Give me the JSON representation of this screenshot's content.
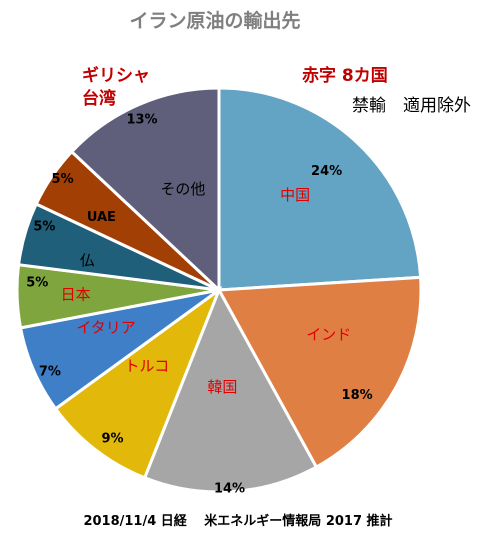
{
  "chart_data": {
    "type": "pie",
    "title": "イラン原油の輸出先",
    "series": [
      {
        "name": "中国",
        "value": 24,
        "label": "24%",
        "color": "#63a3c4"
      },
      {
        "name": "インド",
        "value": 18,
        "label": "18%",
        "color": "#e07f43"
      },
      {
        "name": "韓国",
        "value": 14,
        "label": "14%",
        "color": "#a6a6a6"
      },
      {
        "name": "トルコ",
        "value": 9,
        "label": "9%",
        "color": "#e2b80a"
      },
      {
        "name": "イタリア",
        "value": 7,
        "label": "7%",
        "color": "#3f7fc7"
      },
      {
        "name": "日本",
        "value": 5,
        "label": "5%",
        "color": "#7fa53e"
      },
      {
        "name": "仏",
        "value": 5,
        "label": "5%",
        "color": "#205f7a"
      },
      {
        "name": "UAE",
        "value": 5,
        "label": "5%",
        "color": "#a23f04"
      },
      {
        "name": "その他",
        "value": 13,
        "label": "13%",
        "color": "#5f5f7c"
      }
    ],
    "annotations": {
      "red_top_right": "赤字 8カ国",
      "black_top_right": "禁輸　適用除外",
      "red_top_left_line1": "ギリシャ",
      "red_top_left_line2": "台湾"
    }
  },
  "footer": "2018/11/4 日経　 米エネルギー情報局 2017 推計"
}
